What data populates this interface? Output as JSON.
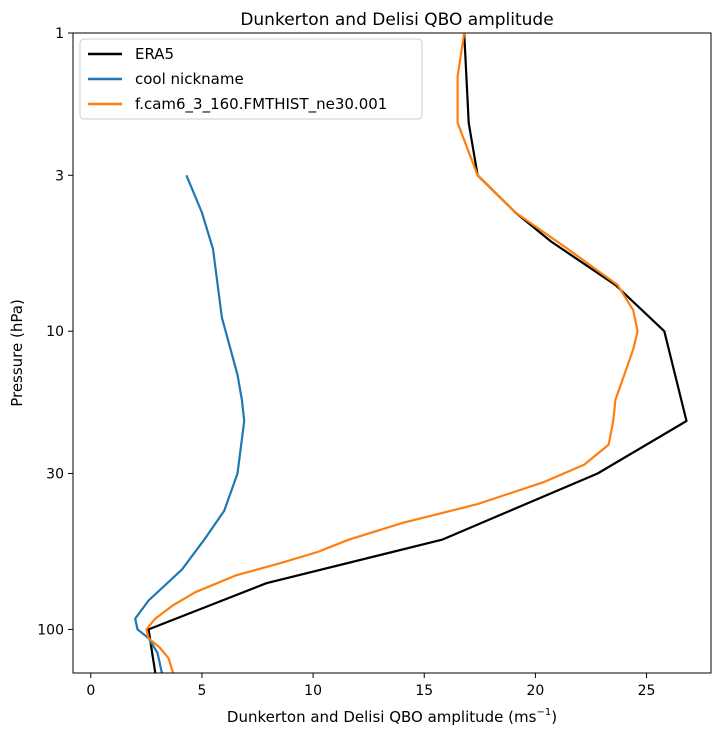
{
  "chart_data": {
    "type": "line",
    "title": "Dunkerton and Delisi QBO amplitude",
    "xlabel": "Dunkerton and Delisi QBO amplitude (ms",
    "xlabel_sup": "−1",
    "xlabel_close": ")",
    "ylabel": "Pressure (hPa)",
    "xlim": [
      -0.8,
      27.9
    ],
    "ylim": [
      140,
      1
    ],
    "yscale": "log",
    "x_ticks": [
      0,
      5,
      10,
      15,
      20,
      25
    ],
    "x_tick_labels": [
      "0",
      "5",
      "10",
      "15",
      "20",
      "25"
    ],
    "y_ticks": [
      1,
      3,
      10,
      30,
      100
    ],
    "y_tick_labels": [
      "1",
      "3",
      "10",
      "30",
      "100"
    ],
    "legend_position": "top-left",
    "series": [
      {
        "name": "ERA5",
        "color": "#000000",
        "x": [
          16.8,
          17.0,
          17.4,
          19.1,
          20.7,
          23.6,
          25.8,
          26.8,
          22.8,
          15.8,
          7.9,
          2.6,
          2.8,
          2.9
        ],
        "y": [
          1,
          2,
          3,
          4,
          5,
          7,
          10,
          20,
          30,
          50,
          70,
          100,
          125,
          140
        ]
      },
      {
        "name": "cool nickname",
        "color": "#1f77b4",
        "x": [
          4.3,
          5.0,
          5.5,
          5.9,
          6.6,
          6.8,
          6.9,
          6.6,
          6.0,
          5.1,
          4.1,
          2.6,
          2.0,
          2.1,
          2.6,
          3.0,
          3.2
        ],
        "y": [
          3,
          4,
          5.3,
          9,
          14,
          17,
          20,
          30,
          40,
          50,
          63,
          80,
          92,
          100,
          107,
          120,
          140
        ]
      },
      {
        "name": "f.cam6_3_160.FMTHIST_ne30.001",
        "color": "#ff7f0e",
        "x": [
          16.8,
          16.5,
          16.5,
          17.4,
          19.1,
          21.3,
          23.7,
          24.4,
          24.6,
          24.4,
          24.0,
          23.6,
          23.5,
          23.3,
          22.2,
          20.4,
          17.4,
          14.0,
          11.6,
          10.2,
          8.5,
          6.5,
          4.7,
          3.7,
          2.9,
          2.5,
          2.6,
          3.1,
          3.5,
          3.7
        ],
        "y": [
          1,
          1.4,
          2,
          3,
          4,
          5.2,
          7,
          8.5,
          10,
          11.5,
          14,
          17,
          20,
          24,
          28,
          32,
          38,
          44,
          50,
          55,
          60,
          66,
          75,
          83,
          92,
          100,
          107,
          115,
          125,
          140
        ]
      }
    ]
  }
}
